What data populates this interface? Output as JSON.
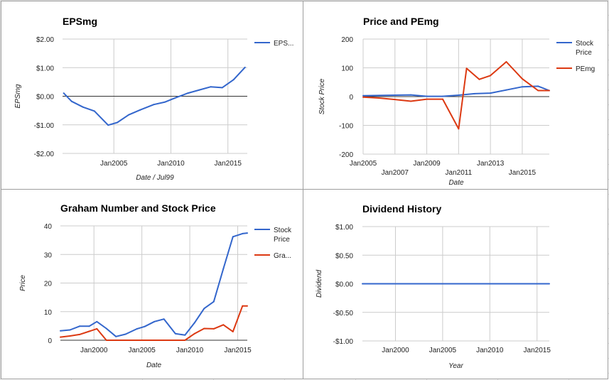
{
  "chart_data": [
    {
      "id": "eps",
      "type": "line",
      "title": "EPSmg",
      "xlabel": "Date / Jul99",
      "ylabel": "EPSmg",
      "xlim": [
        2000.5,
        2016.7
      ],
      "ylim": [
        -2,
        2
      ],
      "y_ticks": [
        {
          "v": 2,
          "label": "$2.00"
        },
        {
          "v": 1,
          "label": "$1.00"
        },
        {
          "v": 0,
          "label": "$0.00"
        },
        {
          "v": -1,
          "label": "-$1.00"
        },
        {
          "v": -2,
          "label": "-$2.00"
        }
      ],
      "x_ticks": [
        {
          "v": 2005,
          "label": "Jan2005"
        },
        {
          "v": 2010,
          "label": "Jan2010"
        },
        {
          "v": 2015,
          "label": "Jan2015"
        }
      ],
      "grid": true,
      "legend_position": "right",
      "series": [
        {
          "name": "EPS...",
          "color": "#3366cc",
          "x": [
            2000.6,
            2001.3,
            2002.3,
            2003.3,
            2004.5,
            2005.3,
            2006.3,
            2007.3,
            2008.5,
            2009.5,
            2010.5,
            2011.5,
            2012.5,
            2013.5,
            2014.5,
            2015.5,
            2016.5
          ],
          "y": [
            0.11,
            -0.18,
            -0.38,
            -0.52,
            -1.01,
            -0.92,
            -0.65,
            -0.48,
            -0.29,
            -0.2,
            -0.04,
            0.11,
            0.22,
            0.33,
            0.3,
            0.58,
            1.01
          ]
        }
      ]
    },
    {
      "id": "pe",
      "type": "line",
      "title": "Price and PEmg",
      "xlabel": "Date",
      "ylabel": "Stock Price",
      "xlim": [
        2005,
        2016.7
      ],
      "ylim": [
        -200,
        200
      ],
      "y_ticks": [
        {
          "v": 200,
          "label": "200"
        },
        {
          "v": 100,
          "label": "100"
        },
        {
          "v": 0,
          "label": "0"
        },
        {
          "v": -100,
          "label": "-100"
        },
        {
          "v": -200,
          "label": "-200"
        }
      ],
      "x_ticks": [
        {
          "v": 2005,
          "label": "Jan2005",
          "row": 1
        },
        {
          "v": 2007,
          "label": "Jan2007",
          "row": 2
        },
        {
          "v": 2009,
          "label": "Jan2009",
          "row": 1
        },
        {
          "v": 2011,
          "label": "Jan2011",
          "row": 2
        },
        {
          "v": 2013,
          "label": "Jan2013",
          "row": 1
        },
        {
          "v": 2015,
          "label": "Jan2015",
          "row": 2
        }
      ],
      "grid": true,
      "legend_position": "right",
      "series": [
        {
          "name": "Stock Price",
          "color": "#3366cc",
          "x": [
            2005,
            2006,
            2007,
            2008,
            2009,
            2010,
            2011,
            2012,
            2013,
            2014,
            2015,
            2016,
            2016.7
          ],
          "y": [
            3,
            4,
            5,
            6,
            1,
            1,
            5,
            10,
            12,
            23,
            34,
            36,
            21
          ]
        },
        {
          "name": "PEmg",
          "color": "#dc3912",
          "x": [
            2005,
            2006,
            2007,
            2008,
            2009,
            2010,
            2011,
            2011.5,
            2012.3,
            2013,
            2014,
            2015,
            2016,
            2016.7
          ],
          "y": [
            -2,
            -5,
            -10,
            -16,
            -9,
            -9,
            -112,
            98,
            60,
            73,
            121,
            62,
            21,
            21
          ]
        }
      ]
    },
    {
      "id": "graham",
      "type": "line",
      "title": "Graham Number and Stock Price",
      "xlabel": "Date",
      "ylabel": "Price",
      "xlim": [
        1996.5,
        2016
      ],
      "ylim": [
        0,
        40
      ],
      "y_ticks": [
        {
          "v": 40,
          "label": "40"
        },
        {
          "v": 30,
          "label": "30"
        },
        {
          "v": 20,
          "label": "20"
        },
        {
          "v": 10,
          "label": "10"
        },
        {
          "v": 0,
          "label": "0"
        }
      ],
      "x_ticks": [
        {
          "v": 2000,
          "label": "Jan2000"
        },
        {
          "v": 2005,
          "label": "Jan2005"
        },
        {
          "v": 2010,
          "label": "Jan2010"
        },
        {
          "v": 2015,
          "label": "Jan2015"
        }
      ],
      "grid": true,
      "legend_position": "right",
      "series": [
        {
          "name": "Stock Price",
          "color": "#3366cc",
          "x": [
            1996.5,
            1997.5,
            1998.5,
            1999.5,
            2000.3,
            2001.3,
            2002.3,
            2003.3,
            2004.5,
            2005.3,
            2006.3,
            2007.3,
            2008.5,
            2009.5,
            2010.5,
            2011.5,
            2012.5,
            2013.5,
            2014.5,
            2015.5,
            2016
          ],
          "y": [
            3.3,
            3.6,
            4.9,
            4.9,
            6.5,
            4.1,
            1.3,
            2.1,
            4.0,
            4.8,
            6.5,
            7.4,
            2.3,
            1.8,
            6.1,
            11.1,
            13.5,
            25.0,
            36.2,
            37.3,
            37.5
          ]
        },
        {
          "name": "Gra...",
          "color": "#dc3912",
          "x": [
            1996.5,
            1997.5,
            1998.5,
            1999.5,
            2000.3,
            2001.3,
            2002.3,
            2003.3,
            2004.5,
            2005.3,
            2006.3,
            2007.3,
            2008.5,
            2009.5,
            2010.5,
            2011.5,
            2012.5,
            2013.5,
            2014.5,
            2015.5,
            2016
          ],
          "y": [
            1.1,
            1.5,
            2.0,
            3.1,
            4.0,
            0,
            0,
            0,
            0,
            0,
            0,
            0,
            0,
            0,
            2.3,
            4.1,
            4.0,
            5.4,
            3.0,
            12.0,
            12.0
          ]
        }
      ]
    },
    {
      "id": "dividend",
      "type": "line",
      "title": "Dividend History",
      "xlabel": "Year",
      "ylabel": "Dividend",
      "xlim": [
        1996.5,
        2016.3
      ],
      "ylim": [
        -1,
        1
      ],
      "y_ticks": [
        {
          "v": 1,
          "label": "$1.00"
        },
        {
          "v": 0.5,
          "label": "$0.50"
        },
        {
          "v": 0,
          "label": "$0.00"
        },
        {
          "v": -0.5,
          "label": "-$0.50"
        },
        {
          "v": -1,
          "label": "-$1.00"
        }
      ],
      "x_ticks": [
        {
          "v": 2000,
          "label": "Jan2000"
        },
        {
          "v": 2005,
          "label": "Jan2005"
        },
        {
          "v": 2010,
          "label": "Jan2010"
        },
        {
          "v": 2015,
          "label": "Jan2015"
        }
      ],
      "grid": true,
      "legend_position": "none",
      "series": [
        {
          "color": "#3366cc",
          "x": [
            1996.5,
            2016.3
          ],
          "y": [
            0,
            0
          ]
        }
      ]
    }
  ]
}
